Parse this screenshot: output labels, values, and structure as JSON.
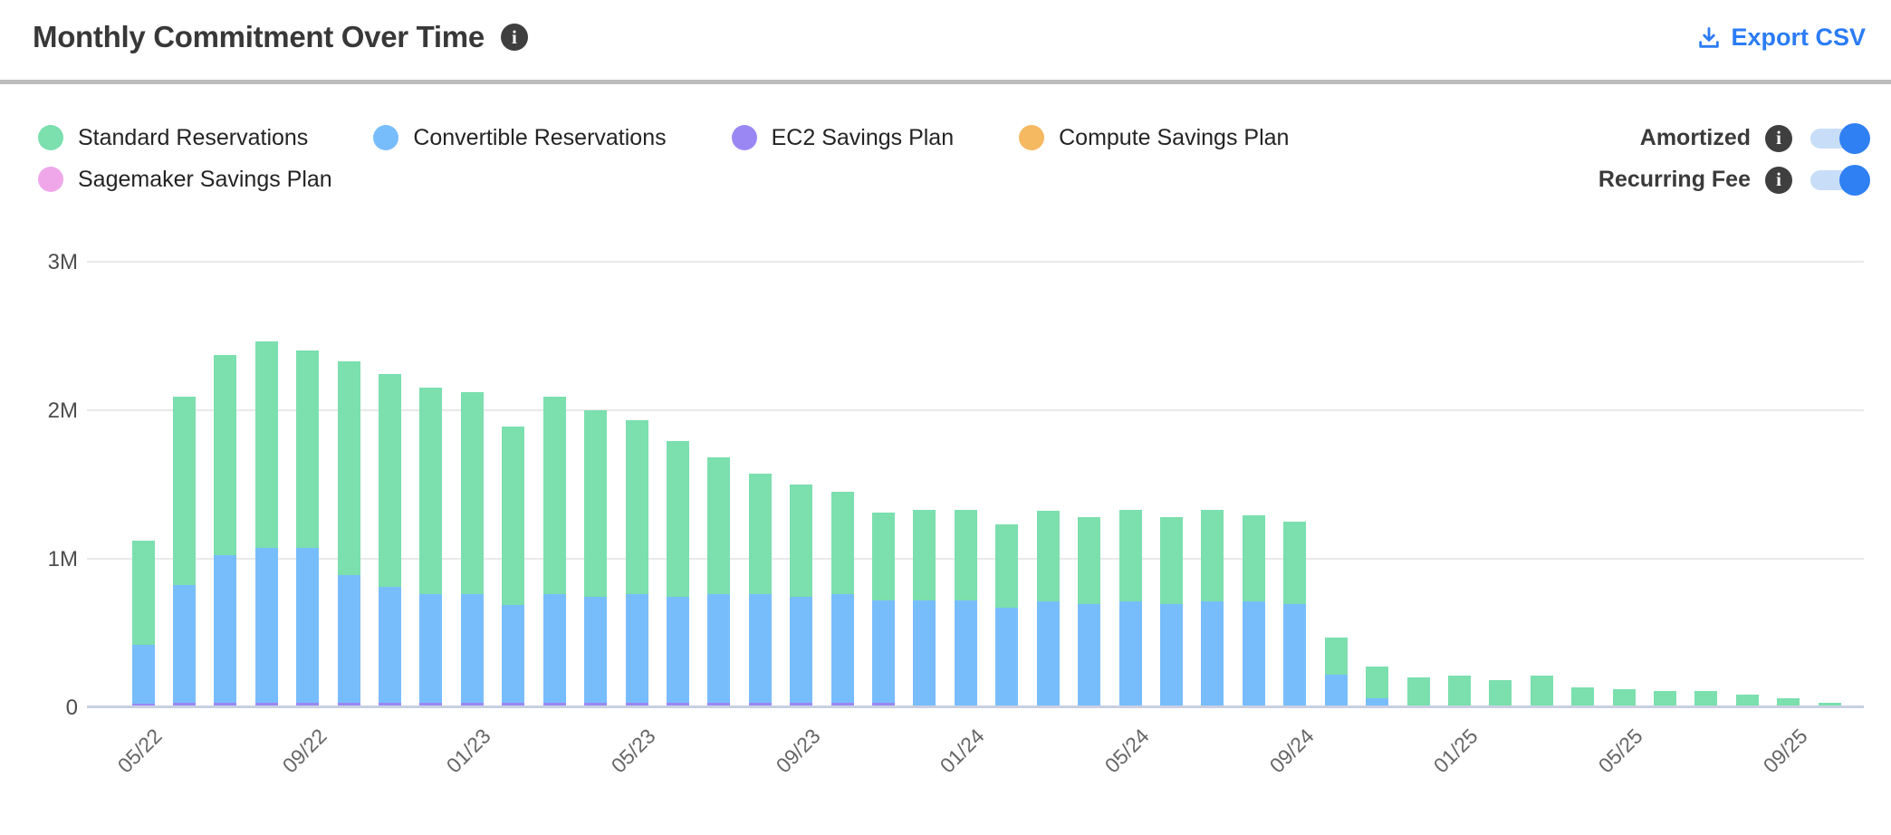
{
  "header": {
    "title": "Monthly Commitment Over Time",
    "title_info_icon": "info-icon",
    "export_label": "Export CSV",
    "export_icon": "download-icon",
    "export_color": "#2b7cf5"
  },
  "controls": {
    "toggles": [
      {
        "label": "Amortized",
        "state": "on"
      },
      {
        "label": "Recurring Fee",
        "state": "on"
      }
    ],
    "toggle_on_color": "#2f80f2",
    "toggle_track_color": "#c8ddf7"
  },
  "chart_data": {
    "type": "bar",
    "stacked": true,
    "title": "Monthly Commitment Over Time",
    "unit": "M",
    "ylim": [
      0,
      3000000
    ],
    "y_ticks": [
      "0",
      "1M",
      "2M",
      "3M"
    ],
    "grid": "horizontal",
    "legend_position": "top-left",
    "categories": [
      "05/22",
      "06/22",
      "07/22",
      "08/22",
      "09/22",
      "10/22",
      "11/22",
      "12/22",
      "01/23",
      "02/23",
      "03/23",
      "04/23",
      "05/23",
      "06/23",
      "07/23",
      "08/23",
      "09/23",
      "10/23",
      "11/23",
      "12/23",
      "01/24",
      "02/24",
      "03/24",
      "04/24",
      "05/24",
      "06/24",
      "07/24",
      "08/24",
      "09/24",
      "10/24",
      "11/24",
      "12/24",
      "01/25",
      "02/25",
      "03/25",
      "04/25",
      "05/25",
      "06/25",
      "07/25",
      "08/25",
      "09/25",
      "10/25"
    ],
    "x_tick_labels": [
      "05/22",
      "09/22",
      "01/23",
      "05/23",
      "09/23",
      "01/24",
      "05/24",
      "09/24",
      "01/25",
      "05/25",
      "09/25"
    ],
    "x_tick_every": 4,
    "series": [
      {
        "name": "Standard Reservations",
        "color": "#7bdfae",
        "values": [
          0.7,
          1.27,
          1.35,
          1.39,
          1.33,
          1.44,
          1.43,
          1.39,
          1.36,
          1.2,
          1.33,
          1.26,
          1.17,
          1.05,
          0.92,
          0.81,
          0.76,
          0.69,
          0.59,
          0.61,
          0.61,
          0.56,
          0.61,
          0.59,
          0.62,
          0.59,
          0.62,
          0.58,
          0.56,
          0.25,
          0.21,
          0.19,
          0.2,
          0.17,
          0.2,
          0.12,
          0.11,
          0.1,
          0.1,
          0.075,
          0.05,
          0.02
        ]
      },
      {
        "name": "Convertible Reservations",
        "color": "#78bdfb",
        "values": [
          0.4,
          0.79,
          0.99,
          1.04,
          1.04,
          0.86,
          0.78,
          0.73,
          0.73,
          0.66,
          0.73,
          0.71,
          0.73,
          0.71,
          0.73,
          0.73,
          0.71,
          0.73,
          0.69,
          0.71,
          0.71,
          0.66,
          0.7,
          0.68,
          0.7,
          0.68,
          0.7,
          0.7,
          0.68,
          0.21,
          0.05,
          0,
          0,
          0,
          0,
          0,
          0,
          0,
          0,
          0,
          0,
          0
        ]
      },
      {
        "name": "EC2 Savings Plan",
        "color": "#9b87f4",
        "values": [
          0.01,
          0.02,
          0.02,
          0.02,
          0.02,
          0.02,
          0.02,
          0.02,
          0.02,
          0.02,
          0.02,
          0.02,
          0.02,
          0.02,
          0.02,
          0.02,
          0.02,
          0.02,
          0.02,
          0,
          0,
          0,
          0,
          0,
          0,
          0,
          0,
          0,
          0,
          0,
          0,
          0,
          0,
          0,
          0,
          0,
          0,
          0,
          0,
          0,
          0,
          0
        ]
      },
      {
        "name": "Compute Savings Plan",
        "color": "#f5b961",
        "values": [
          0,
          0,
          0,
          0,
          0,
          0,
          0,
          0,
          0,
          0,
          0,
          0,
          0,
          0,
          0,
          0,
          0,
          0,
          0,
          0,
          0,
          0,
          0,
          0,
          0,
          0,
          0,
          0,
          0,
          0,
          0,
          0,
          0,
          0,
          0,
          0,
          0,
          0,
          0,
          0,
          0,
          0
        ]
      },
      {
        "name": "Sagemaker Savings Plan",
        "color": "#efa7ea",
        "values": [
          0,
          0,
          0,
          0,
          0,
          0,
          0,
          0,
          0,
          0,
          0,
          0,
          0,
          0,
          0,
          0,
          0,
          0,
          0,
          0,
          0,
          0,
          0,
          0,
          0,
          0,
          0,
          0,
          0,
          0,
          0,
          0,
          0,
          0,
          0,
          0,
          0,
          0,
          0,
          0,
          0,
          0
        ]
      }
    ],
    "values_unit_note": "values in millions (M)"
  }
}
